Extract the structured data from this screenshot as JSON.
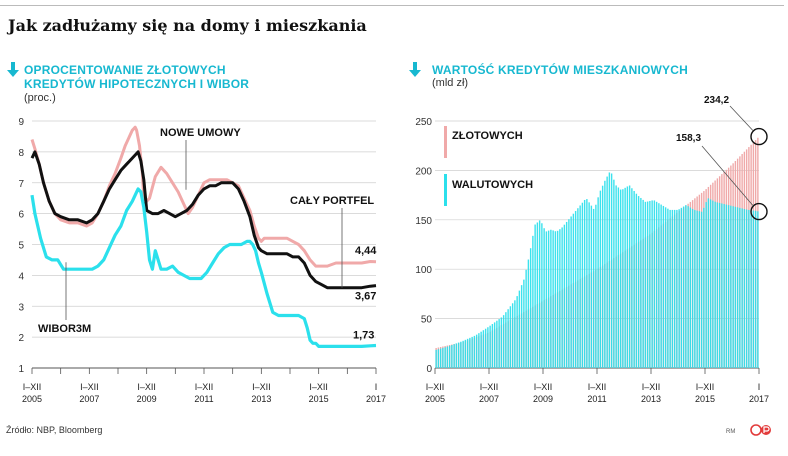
{
  "title": "Jak zadłużamy się na domy i mieszkania",
  "source": "Źródło: NBP, Bloomberg",
  "credit": "RM",
  "colors": {
    "cyan": "#2be0ec",
    "pink": "#f0a9a9",
    "black": "#111111",
    "heading": "#17b8d0"
  },
  "icons": {
    "panel_marker": "down-arrow-icon",
    "logo": "publisher-logo-icon"
  },
  "left_panel": {
    "heading_line1": "OPROCENTOWANIE ZŁOTOWYCH",
    "heading_line2": "KREDYTÓW HIPOTECZNYCH I WIBOR",
    "unit": "(proc.)"
  },
  "right_panel": {
    "heading_line1": "WARTOŚĆ KREDYTÓW MIESZKANIOWYCH",
    "unit": "(mld zł)"
  },
  "chart_data": [
    {
      "type": "line",
      "title": "OPROCENTOWANIE ZŁOTOWYCH KREDYTÓW HIPOTECZNYCH I WIBOR",
      "ylabel": "(proc.)",
      "ylim": [
        1,
        9
      ],
      "yticks": [
        1,
        2,
        3,
        4,
        5,
        6,
        7,
        8,
        9
      ],
      "xlim": [
        2005.0,
        2017.0
      ],
      "xtick_labels": [
        {
          "x": 2005,
          "top": "I–XII",
          "bottom": "2005"
        },
        {
          "x": 2006,
          "top": "",
          "bottom": ""
        },
        {
          "x": 2007,
          "top": "I–XII",
          "bottom": "2007"
        },
        {
          "x": 2008,
          "top": "",
          "bottom": ""
        },
        {
          "x": 2009,
          "top": "I–XII",
          "bottom": "2009"
        },
        {
          "x": 2010,
          "top": "",
          "bottom": ""
        },
        {
          "x": 2011,
          "top": "I–XII",
          "bottom": "2011"
        },
        {
          "x": 2012,
          "top": "",
          "bottom": ""
        },
        {
          "x": 2013,
          "top": "I–XII",
          "bottom": "2013"
        },
        {
          "x": 2014,
          "top": "",
          "bottom": ""
        },
        {
          "x": 2015,
          "top": "I–XII",
          "bottom": "2015"
        },
        {
          "x": 2016,
          "top": "",
          "bottom": ""
        },
        {
          "x": 2017,
          "top": "I",
          "bottom": "2017"
        }
      ],
      "grid": true,
      "series": [
        {
          "name": "NOWE UMOWY",
          "color": "#f0a9a9",
          "end_label": "4,44",
          "x": [
            2005.0,
            2005.1,
            2005.25,
            2005.4,
            2005.6,
            2005.8,
            2006.0,
            2006.3,
            2006.6,
            2006.9,
            2007.1,
            2007.3,
            2007.5,
            2007.7,
            2007.9,
            2008.1,
            2008.25,
            2008.4,
            2008.5,
            2008.6,
            2008.65,
            2008.75,
            2008.85,
            2008.9,
            2009.0,
            2009.1,
            2009.3,
            2009.5,
            2009.7,
            2009.9,
            2010.1,
            2010.3,
            2010.45,
            2010.6,
            2010.8,
            2011.0,
            2011.2,
            2011.4,
            2011.6,
            2011.8,
            2012.0,
            2012.2,
            2012.4,
            2012.6,
            2012.75,
            2012.9,
            2013.0,
            2013.1,
            2013.3,
            2013.6,
            2013.9,
            2014.1,
            2014.3,
            2014.5,
            2014.7,
            2014.9,
            2015.1,
            2015.3,
            2015.6,
            2015.9,
            2016.2,
            2016.5,
            2016.8,
            2017.0
          ],
          "y": [
            8.4,
            8.1,
            7.6,
            7.0,
            6.4,
            6.0,
            5.8,
            5.7,
            5.7,
            5.6,
            5.7,
            6.0,
            6.4,
            6.9,
            7.3,
            7.8,
            8.2,
            8.5,
            8.7,
            8.8,
            8.7,
            8.2,
            7.3,
            6.5,
            6.4,
            6.5,
            7.2,
            7.5,
            7.3,
            7.0,
            6.7,
            6.3,
            6.0,
            6.2,
            6.6,
            7.0,
            7.1,
            7.1,
            7.1,
            7.1,
            7.0,
            6.9,
            6.5,
            6.1,
            5.6,
            5.2,
            5.1,
            5.2,
            5.2,
            5.2,
            5.2,
            5.1,
            5.0,
            4.8,
            4.5,
            4.3,
            4.3,
            4.3,
            4.4,
            4.4,
            4.4,
            4.4,
            4.45,
            4.44
          ]
        },
        {
          "name": "CAŁY PORTFEL",
          "color": "#111111",
          "end_label": "3,67",
          "x": [
            2005.0,
            2005.1,
            2005.25,
            2005.4,
            2005.6,
            2005.8,
            2006.0,
            2006.3,
            2006.6,
            2006.9,
            2007.1,
            2007.3,
            2007.5,
            2007.7,
            2007.9,
            2008.1,
            2008.3,
            2008.5,
            2008.7,
            2008.8,
            2008.9,
            2009.0,
            2009.2,
            2009.4,
            2009.6,
            2009.8,
            2010.0,
            2010.2,
            2010.4,
            2010.6,
            2010.8,
            2011.0,
            2011.2,
            2011.4,
            2011.6,
            2011.8,
            2012.0,
            2012.2,
            2012.4,
            2012.6,
            2012.75,
            2012.9,
            2013.0,
            2013.2,
            2013.4,
            2013.6,
            2013.9,
            2014.1,
            2014.3,
            2014.5,
            2014.7,
            2014.9,
            2015.1,
            2015.3,
            2015.6,
            2015.9,
            2016.2,
            2016.5,
            2016.8,
            2017.0
          ],
          "y": [
            7.8,
            8.0,
            7.6,
            7.0,
            6.4,
            6.0,
            5.9,
            5.8,
            5.8,
            5.7,
            5.8,
            6.0,
            6.4,
            6.8,
            7.1,
            7.4,
            7.6,
            7.8,
            8.0,
            7.7,
            7.1,
            6.1,
            6.0,
            6.0,
            6.1,
            6.0,
            5.9,
            6.0,
            6.1,
            6.3,
            6.6,
            6.8,
            6.9,
            6.9,
            7.0,
            7.0,
            7.0,
            6.8,
            6.4,
            5.9,
            5.3,
            4.9,
            4.8,
            4.7,
            4.7,
            4.7,
            4.7,
            4.6,
            4.6,
            4.4,
            4.0,
            3.8,
            3.7,
            3.6,
            3.6,
            3.6,
            3.6,
            3.6,
            3.65,
            3.67
          ]
        },
        {
          "name": "WIBOR3M",
          "color": "#2be0ec",
          "end_label": "1,73",
          "x": [
            2005.0,
            2005.1,
            2005.3,
            2005.5,
            2005.7,
            2005.9,
            2006.1,
            2006.4,
            2006.7,
            2006.9,
            2007.1,
            2007.3,
            2007.5,
            2007.7,
            2007.9,
            2008.1,
            2008.3,
            2008.5,
            2008.6,
            2008.7,
            2008.8,
            2008.9,
            2009.0,
            2009.1,
            2009.2,
            2009.3,
            2009.5,
            2009.7,
            2009.9,
            2010.1,
            2010.3,
            2010.5,
            2010.7,
            2010.9,
            2011.1,
            2011.3,
            2011.5,
            2011.7,
            2011.9,
            2012.1,
            2012.3,
            2012.5,
            2012.6,
            2012.7,
            2012.8,
            2012.9,
            2013.0,
            2013.2,
            2013.4,
            2013.6,
            2013.8,
            2013.9,
            2014.1,
            2014.3,
            2014.5,
            2014.6,
            2014.7,
            2014.8,
            2014.9,
            2015.0,
            2015.3,
            2015.6,
            2015.9,
            2016.2,
            2016.5,
            2016.8,
            2017.0
          ],
          "y": [
            6.6,
            6.0,
            5.2,
            4.6,
            4.5,
            4.5,
            4.2,
            4.2,
            4.2,
            4.2,
            4.2,
            4.3,
            4.5,
            4.9,
            5.3,
            5.6,
            6.1,
            6.4,
            6.6,
            6.8,
            6.7,
            6.2,
            5.4,
            4.5,
            4.2,
            4.8,
            4.2,
            4.2,
            4.3,
            4.1,
            4.0,
            3.9,
            3.9,
            3.9,
            4.1,
            4.4,
            4.7,
            4.9,
            5.0,
            5.0,
            5.0,
            5.1,
            5.1,
            5.0,
            4.8,
            4.4,
            4.1,
            3.4,
            2.8,
            2.7,
            2.7,
            2.7,
            2.7,
            2.7,
            2.6,
            2.3,
            1.9,
            1.8,
            1.8,
            1.7,
            1.7,
            1.7,
            1.7,
            1.7,
            1.7,
            1.72,
            1.73
          ]
        }
      ]
    },
    {
      "type": "area",
      "title": "WARTOŚĆ KREDYTÓW MIESZKANIOWYCH",
      "ylabel": "(mld zł)",
      "ylim": [
        0,
        250
      ],
      "yticks": [
        0,
        50,
        100,
        150,
        200,
        250
      ],
      "xlim": [
        2005.0,
        2017.0
      ],
      "xtick_labels": [
        {
          "x": 2005,
          "top": "I–XII",
          "bottom": "2005"
        },
        {
          "x": 2007,
          "top": "I–XII",
          "bottom": "2007"
        },
        {
          "x": 2009,
          "top": "I–XII",
          "bottom": "2009"
        },
        {
          "x": 2011,
          "top": "I–XII",
          "bottom": "2011"
        },
        {
          "x": 2013,
          "top": "I–XII",
          "bottom": "2013"
        },
        {
          "x": 2015,
          "top": "I–XII",
          "bottom": "2015"
        },
        {
          "x": 2017,
          "top": "I",
          "bottom": "2017"
        }
      ],
      "grid": true,
      "series": [
        {
          "name": "ZŁOTOWYCH",
          "color": "#f0a9a9",
          "end_label": "234,2",
          "x": [
            2005.0,
            2006.0,
            2007.0,
            2008.0,
            2009.0,
            2010.0,
            2011.0,
            2012.0,
            2013.0,
            2014.0,
            2015.0,
            2016.0,
            2017.0
          ],
          "y": [
            20,
            26,
            36,
            52,
            68,
            84,
            100,
            118,
            136,
            158,
            180,
            206,
            234.2
          ]
        },
        {
          "name": "WALUTOWYCH",
          "color": "#2be0ec",
          "end_label": "158,3",
          "x": [
            2005.0,
            2005.5,
            2006.0,
            2006.5,
            2007.0,
            2007.5,
            2008.0,
            2008.3,
            2008.5,
            2008.7,
            2008.9,
            2009.1,
            2009.3,
            2009.5,
            2009.7,
            2010.0,
            2010.3,
            2010.6,
            2010.9,
            2011.1,
            2011.3,
            2011.5,
            2011.7,
            2011.9,
            2012.2,
            2012.5,
            2012.8,
            2013.1,
            2013.4,
            2013.7,
            2014.0,
            2014.3,
            2014.6,
            2014.9,
            2015.1,
            2015.4,
            2015.7,
            2016.0,
            2016.3,
            2016.6,
            2016.9,
            2017.0
          ],
          "y": [
            18,
            22,
            27,
            33,
            42,
            52,
            70,
            90,
            115,
            145,
            150,
            138,
            140,
            138,
            142,
            152,
            162,
            172,
            160,
            178,
            190,
            200,
            185,
            180,
            185,
            175,
            168,
            170,
            165,
            160,
            160,
            165,
            160,
            158,
            172,
            168,
            166,
            164,
            162,
            160,
            159,
            158.3
          ]
        }
      ]
    }
  ]
}
